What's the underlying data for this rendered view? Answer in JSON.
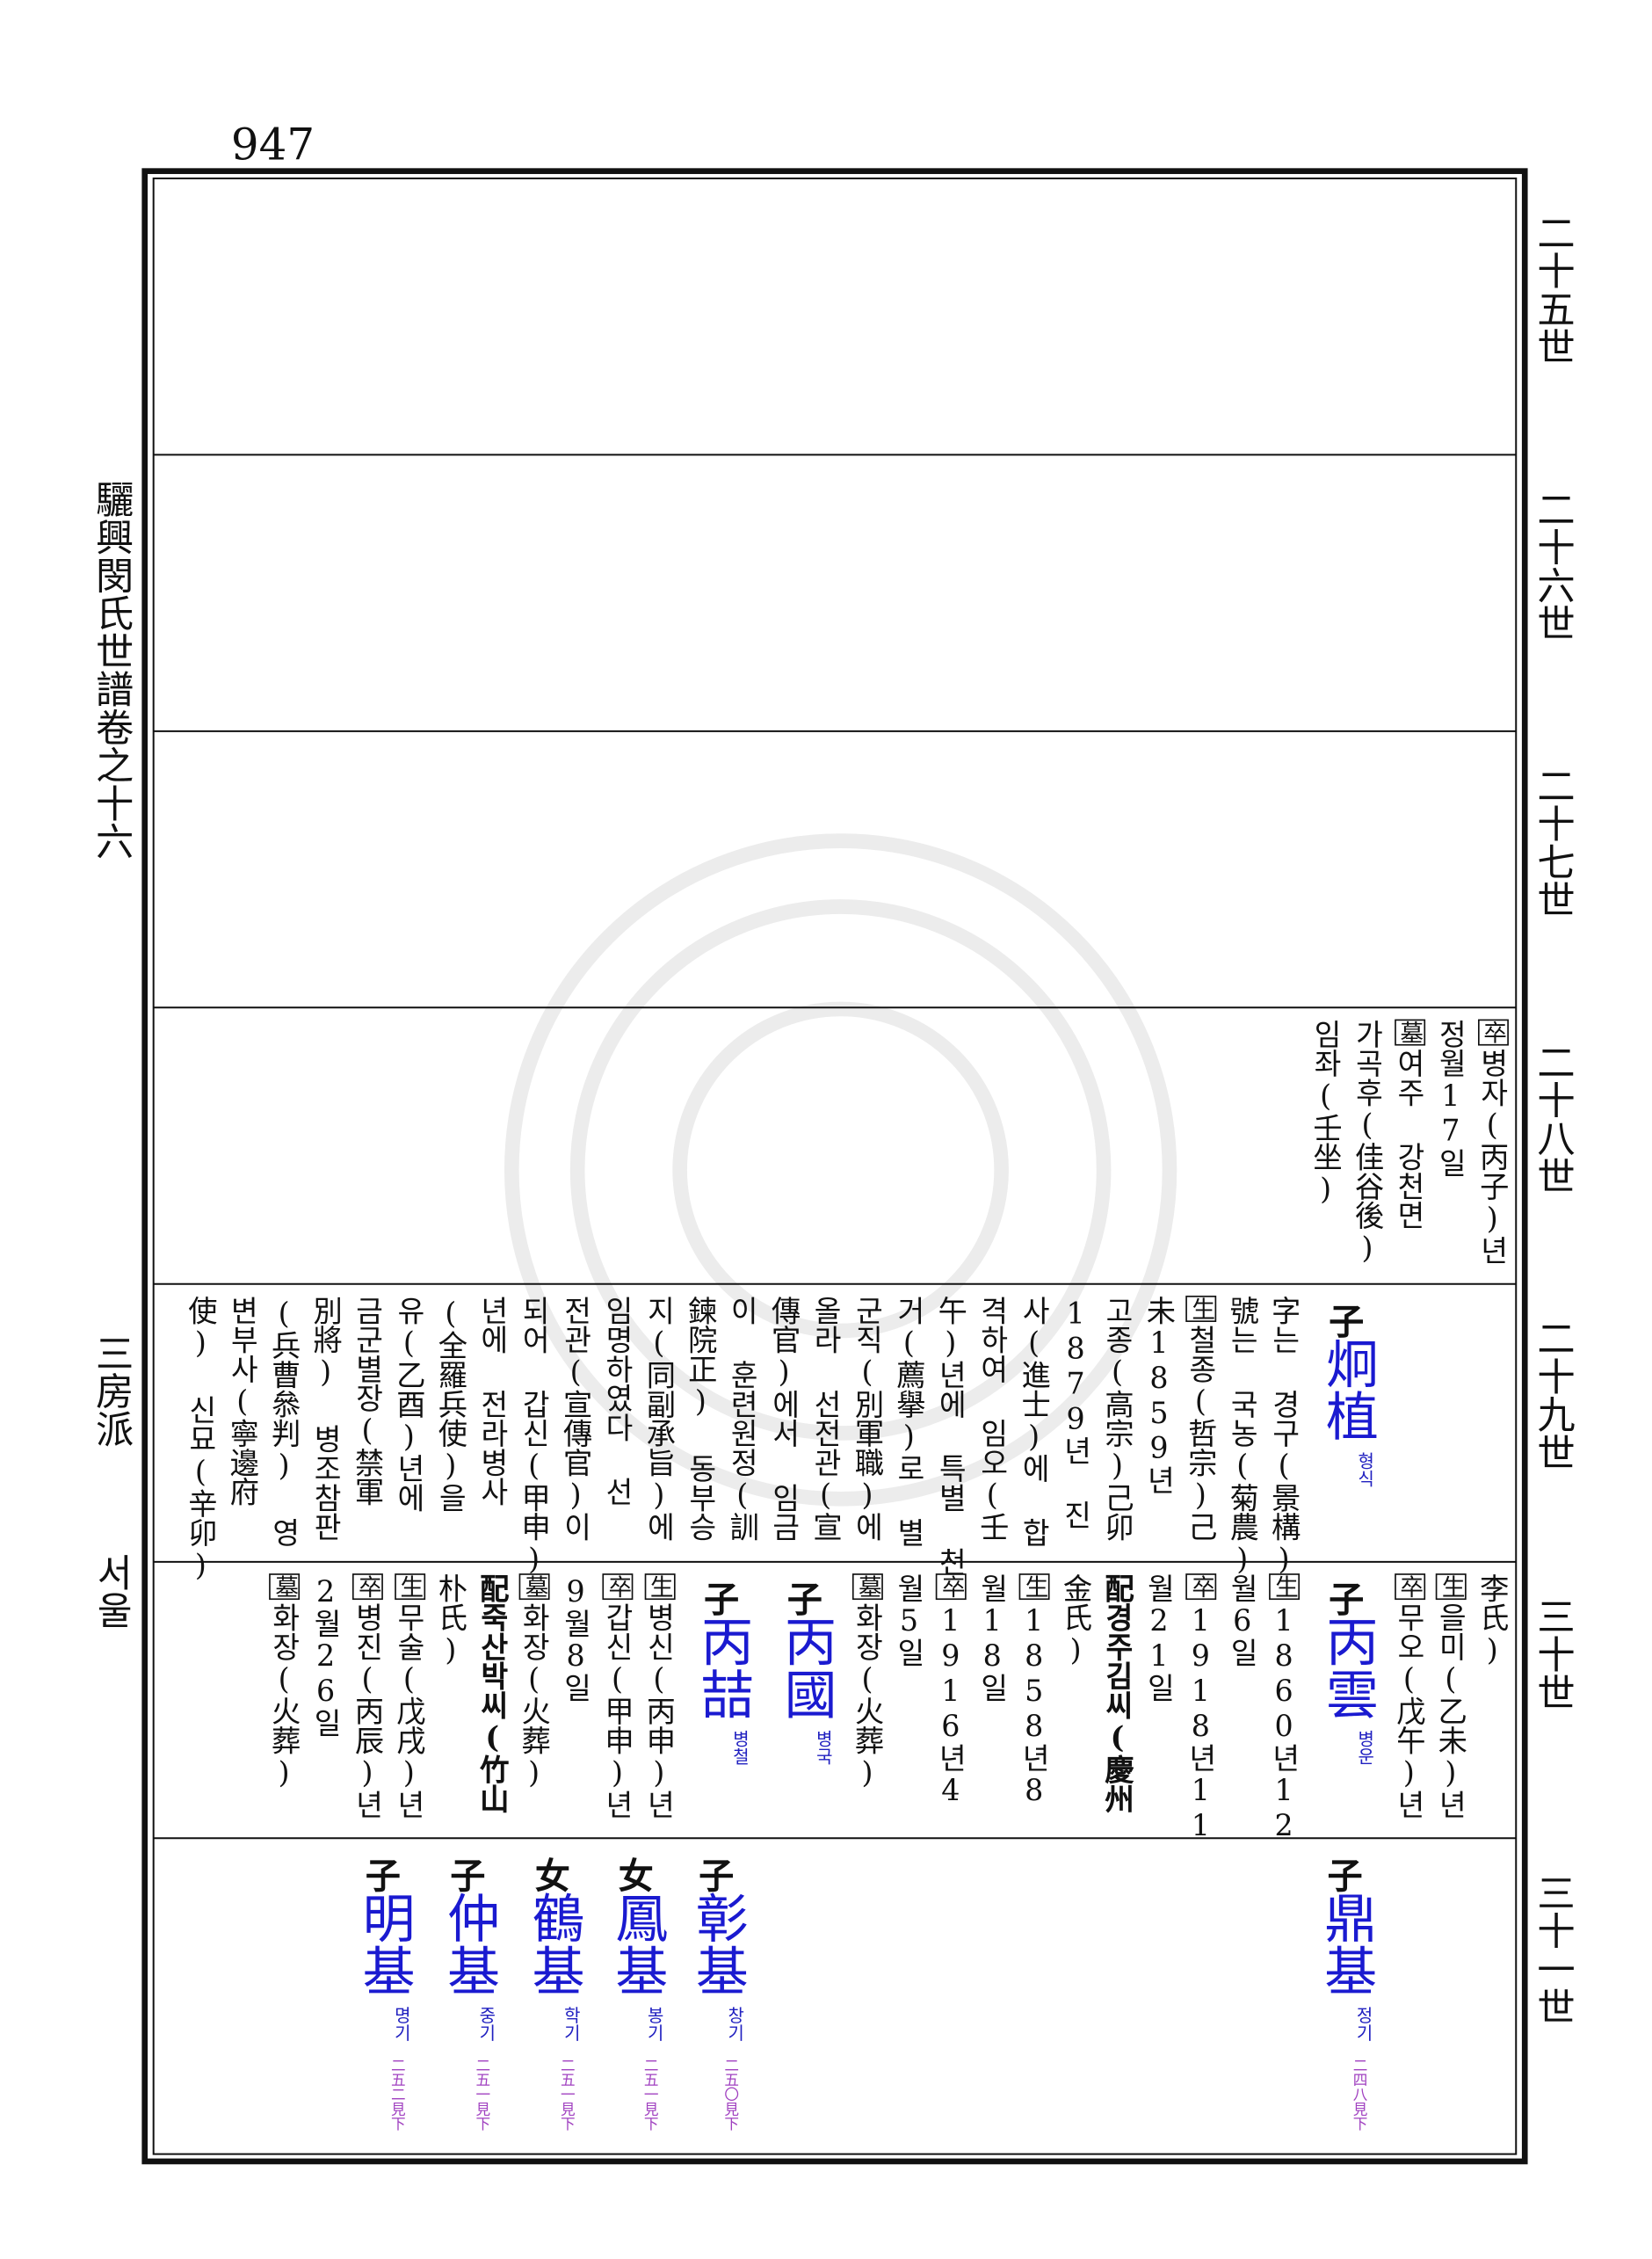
{
  "page_number": "947",
  "book_title": "驪興閔氏世譜卷之十六",
  "branch": "三房派",
  "region": "서울",
  "rows": [
    {
      "generation": "二十五世",
      "items": []
    },
    {
      "generation": "二十六世",
      "items": []
    },
    {
      "generation": "二十七世",
      "items": []
    },
    {
      "generation": "二十八世",
      "items": [
        {
          "mark": "卒",
          "text": "병자(丙子)년"
        },
        {
          "text": "정월17일"
        },
        {
          "mark": "墓",
          "text": "여주 강천면"
        },
        {
          "text": "가곡후(佳谷後)"
        },
        {
          "text": "임좌(壬坐)"
        }
      ]
    },
    {
      "generation": "二十九世",
      "items": [
        {
          "relation": "子",
          "name": "炯植",
          "reading": "형식"
        },
        {
          "text": "字는 경구(景構)"
        },
        {
          "text": "號는 국농(菊農)"
        },
        {
          "mark": "生",
          "text": "철종(哲宗)己"
        },
        {
          "text": "未1859년"
        },
        {
          "text": "고종(高宗)己卯"
        },
        {
          "text": "1879년 진"
        },
        {
          "text": "사(進士)에 합"
        },
        {
          "text": "격하여 임오(壬"
        },
        {
          "text": "午)년에 특별 천"
        },
        {
          "text": "거(薦擧)로 별"
        },
        {
          "text": "군직(別軍職)에"
        },
        {
          "text": "올라 선전관(宣"
        },
        {
          "text": "傳官)에서 임금"
        },
        {
          "text": "이 훈련원정(訓"
        },
        {
          "text": "鍊院正) 동부승"
        },
        {
          "text": "지(同副承旨)에"
        },
        {
          "text": "임명하였다 선"
        },
        {
          "text": "전관(宣傳官)이"
        },
        {
          "text": "되어 갑신(甲申)"
        },
        {
          "text": "년에 전라병사"
        },
        {
          "text": "(全羅兵使)을"
        },
        {
          "text": "유(乙酉)년에"
        },
        {
          "text": "금군별장(禁軍"
        },
        {
          "text": "別將) 병조참판"
        },
        {
          "text": "(兵曹叅判) 영"
        },
        {
          "text": "변부사(寧邊府"
        },
        {
          "text": "使) 신묘(辛卯)"
        }
      ]
    },
    {
      "generation": "三十世",
      "items": [
        {
          "text": "李氏)"
        },
        {
          "mark": "生",
          "text": "을미(乙未)년"
        },
        {
          "mark": "卒",
          "text": "무오(戊午)년"
        },
        {
          "relation": "子",
          "name": "丙雲",
          "reading": "병운"
        },
        {
          "mark": "生",
          "text": "1860년12"
        },
        {
          "text": "월6일"
        },
        {
          "mark": "卒",
          "text": "1918년11"
        },
        {
          "text": "월21일"
        },
        {
          "lead": "配",
          "text": "경주김씨(慶州"
        },
        {
          "text": "金氏)"
        },
        {
          "mark": "生",
          "text": "1858년8"
        },
        {
          "text": "월18일"
        },
        {
          "mark": "卒",
          "text": "1916년4"
        },
        {
          "text": "월5일"
        },
        {
          "mark": "墓",
          "text": "화장(火葬)"
        },
        {
          "relation": "子",
          "name": "丙國",
          "reading": "병국"
        },
        {
          "relation": "子",
          "name": "丙喆",
          "reading": "병철"
        },
        {
          "mark": "生",
          "text": "병신(丙申)년"
        },
        {
          "mark": "卒",
          "text": "갑신(甲申)년"
        },
        {
          "text": "9월8일"
        },
        {
          "mark": "墓",
          "text": "화장(火葬)"
        },
        {
          "lead": "配",
          "text": "죽산박씨(竹山"
        },
        {
          "text": "朴氏)"
        },
        {
          "mark": "生",
          "text": "무술(戊戌)년"
        },
        {
          "mark": "卒",
          "text": "병진(丙辰)년"
        },
        {
          "text": "2월26일"
        },
        {
          "mark": "墓",
          "text": "화장(火葬)"
        }
      ]
    },
    {
      "generation": "三十一世",
      "items": [
        {
          "relation": "子",
          "name": "鼎基",
          "reading": "정기",
          "ref": "二四八見下"
        },
        {
          "relation": "子",
          "name": "彰基",
          "reading": "창기",
          "ref": "二五〇見下"
        },
        {
          "relation": "女",
          "name": "鳳基",
          "reading": "봉기",
          "ref": "二五一見下"
        },
        {
          "relation": "女",
          "name": "鶴基",
          "reading": "학기",
          "ref": "二五一見下"
        },
        {
          "relation": "子",
          "name": "仲基",
          "reading": "중기",
          "ref": "二五一見下"
        },
        {
          "relation": "子",
          "name": "明基",
          "reading": "명기",
          "ref": "二五二見下"
        }
      ]
    }
  ]
}
